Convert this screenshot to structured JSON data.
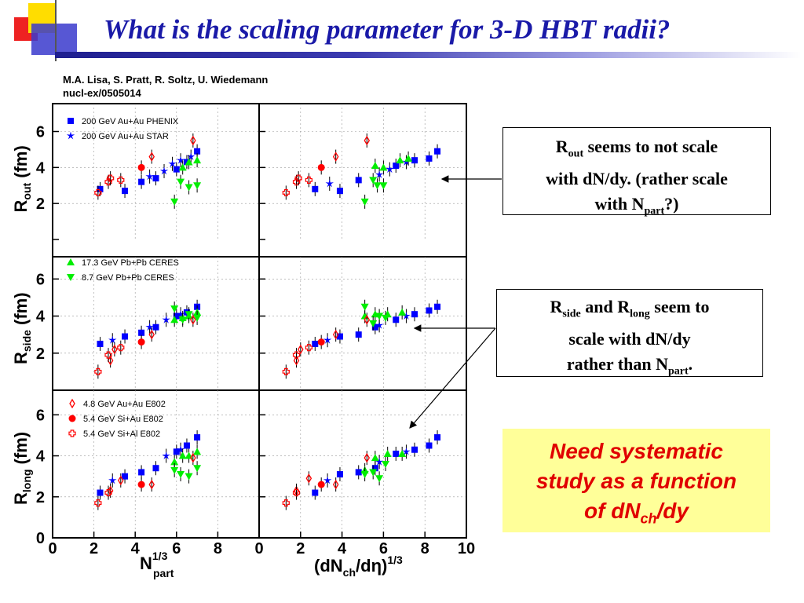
{
  "slide": {
    "title": "What is the scaling parameter for 3-D HBT radii?",
    "cite_line1": "M.A. Lisa, S. Pratt, R. Soltz, U. Wiedemann",
    "cite_line2": "nucl-ex/0505014",
    "colors": {
      "title": "#1a1aa8",
      "note_bg": "#ffff99",
      "note_text": "#e00000"
    }
  },
  "callouts": {
    "rout": {
      "part1": "R",
      "sub1": "out",
      "part2": " seems to not scale",
      "line2": "with dN/dy. (rather scale",
      "part3": "with N",
      "sub3": "part",
      "part4": "?)"
    },
    "rside": {
      "part1": "R",
      "sub1": "side",
      "part2": " and R",
      "sub2": "long",
      "part3": " seem to",
      "line2": "scale with dN/dy",
      "part4": "rather than N",
      "sub4": "part",
      "part5": "."
    },
    "note": {
      "line1": "Need systematic",
      "line2": "study as a function",
      "line3a": "of dN",
      "line3sub": "ch",
      "line3b": "/dy"
    }
  },
  "chart_data": {
    "type": "scatter",
    "y_ticks": [
      "0",
      "2",
      "4",
      "6"
    ],
    "y_labels": [
      {
        "main": "R",
        "sub": "out",
        "unit": " (fm)"
      },
      {
        "main": "R",
        "sub": "side",
        "unit": " (fm)"
      },
      {
        "main": "R",
        "sub": "long",
        "unit": " (fm)"
      }
    ],
    "ylim": [
      0,
      7.2
    ],
    "x_left": {
      "main": "N",
      "sup": "1/3",
      "sub": "part",
      "ticks": [
        "0",
        "2",
        "4",
        "6",
        "8"
      ],
      "xlim": [
        0,
        10
      ]
    },
    "x_right": {
      "label_a": "(dN",
      "label_sub": "ch",
      "label_b": "/d",
      "label_eta": "η",
      "label_c": ")",
      "sup": "1/3",
      "ticks": [
        "0",
        "2",
        "4",
        "6",
        "8",
        "10"
      ],
      "xlim": [
        0,
        10
      ]
    },
    "legends": {
      "top": [
        {
          "marker": "square",
          "color": "#0000ff",
          "label": "200 GeV Au+Au PHENIX"
        },
        {
          "marker": "star",
          "color": "#0000ff",
          "label": "200 GeV Au+Au STAR"
        }
      ],
      "middle": [
        {
          "marker": "tri-up",
          "color": "#00ee00",
          "label": "17.3 GeV Pb+Pb CERES"
        },
        {
          "marker": "tri-down",
          "color": "#00ee00",
          "label": "8.7 GeV Pb+Pb CERES"
        }
      ],
      "bottom": [
        {
          "marker": "diamond-open",
          "color": "#ff0000",
          "label": "4.8 GeV Au+Au E802"
        },
        {
          "marker": "circle",
          "color": "#ff0000",
          "label": "5.4 GeV Si+Au  E802"
        },
        {
          "marker": "cross-open",
          "color": "#ff0000",
          "label": "5.4 GeV Si+Al  E802"
        }
      ]
    },
    "panels": {
      "out_left": [
        {
          "x": 2.3,
          "y": 2.8,
          "m": "square"
        },
        {
          "x": 3.5,
          "y": 2.7,
          "m": "square"
        },
        {
          "x": 4.3,
          "y": 3.2,
          "m": "square"
        },
        {
          "x": 5.0,
          "y": 3.4,
          "m": "square"
        },
        {
          "x": 6.0,
          "y": 3.9,
          "m": "square"
        },
        {
          "x": 6.5,
          "y": 4.3,
          "m": "square"
        },
        {
          "x": 7.0,
          "y": 4.9,
          "m": "square"
        },
        {
          "x": 4.7,
          "y": 3.5,
          "m": "star"
        },
        {
          "x": 5.4,
          "y": 3.8,
          "m": "star"
        },
        {
          "x": 5.8,
          "y": 4.2,
          "m": "star"
        },
        {
          "x": 6.2,
          "y": 4.4,
          "m": "star"
        },
        {
          "x": 6.7,
          "y": 4.6,
          "m": "star"
        },
        {
          "x": 6.3,
          "y": 4.0,
          "m": "tri-up"
        },
        {
          "x": 6.6,
          "y": 4.3,
          "m": "tri-up"
        },
        {
          "x": 7.0,
          "y": 4.4,
          "m": "tri-up"
        },
        {
          "x": 5.9,
          "y": 2.1,
          "m": "tri-down"
        },
        {
          "x": 6.2,
          "y": 3.2,
          "m": "tri-down"
        },
        {
          "x": 6.6,
          "y": 2.9,
          "m": "tri-down"
        },
        {
          "x": 7.0,
          "y": 3.0,
          "m": "tri-down"
        },
        {
          "x": 4.8,
          "y": 4.6,
          "m": "diamond-open"
        },
        {
          "x": 6.8,
          "y": 5.5,
          "m": "diamond-open"
        },
        {
          "x": 4.3,
          "y": 4.0,
          "m": "circle"
        },
        {
          "x": 2.2,
          "y": 2.6,
          "m": "cross-open"
        },
        {
          "x": 2.7,
          "y": 3.2,
          "m": "cross-open"
        },
        {
          "x": 2.8,
          "y": 3.4,
          "m": "cross-open"
        },
        {
          "x": 3.3,
          "y": 3.3,
          "m": "cross-open"
        }
      ],
      "out_right": [
        {
          "x": 2.7,
          "y": 2.8,
          "m": "square"
        },
        {
          "x": 3.9,
          "y": 2.7,
          "m": "square"
        },
        {
          "x": 4.8,
          "y": 3.3,
          "m": "square"
        },
        {
          "x": 6.6,
          "y": 4.1,
          "m": "square"
        },
        {
          "x": 7.5,
          "y": 4.4,
          "m": "square"
        },
        {
          "x": 8.2,
          "y": 4.5,
          "m": "square"
        },
        {
          "x": 8.6,
          "y": 4.9,
          "m": "square"
        },
        {
          "x": 3.4,
          "y": 3.1,
          "m": "star"
        },
        {
          "x": 5.8,
          "y": 3.6,
          "m": "star"
        },
        {
          "x": 6.3,
          "y": 3.9,
          "m": "star"
        },
        {
          "x": 7.1,
          "y": 4.3,
          "m": "star"
        },
        {
          "x": 5.6,
          "y": 4.1,
          "m": "tri-up"
        },
        {
          "x": 6.0,
          "y": 4.0,
          "m": "tri-up"
        },
        {
          "x": 6.8,
          "y": 4.4,
          "m": "tri-up"
        },
        {
          "x": 7.2,
          "y": 4.5,
          "m": "tri-up"
        },
        {
          "x": 5.1,
          "y": 2.1,
          "m": "tri-down"
        },
        {
          "x": 5.5,
          "y": 3.3,
          "m": "tri-down"
        },
        {
          "x": 5.7,
          "y": 3.0,
          "m": "tri-down"
        },
        {
          "x": 6.0,
          "y": 3.0,
          "m": "tri-down"
        },
        {
          "x": 3.7,
          "y": 4.6,
          "m": "diamond-open"
        },
        {
          "x": 5.2,
          "y": 5.5,
          "m": "diamond-open"
        },
        {
          "x": 3.0,
          "y": 4.0,
          "m": "circle"
        },
        {
          "x": 1.3,
          "y": 2.6,
          "m": "cross-open"
        },
        {
          "x": 1.8,
          "y": 3.2,
          "m": "cross-open"
        },
        {
          "x": 1.9,
          "y": 3.4,
          "m": "cross-open"
        },
        {
          "x": 2.4,
          "y": 3.3,
          "m": "cross-open"
        }
      ],
      "side_left": [
        {
          "x": 2.3,
          "y": 2.5,
          "m": "square"
        },
        {
          "x": 3.5,
          "y": 2.9,
          "m": "square"
        },
        {
          "x": 4.3,
          "y": 3.1,
          "m": "square"
        },
        {
          "x": 5.0,
          "y": 3.4,
          "m": "square"
        },
        {
          "x": 6.0,
          "y": 4.0,
          "m": "square"
        },
        {
          "x": 6.5,
          "y": 4.2,
          "m": "square"
        },
        {
          "x": 7.0,
          "y": 4.5,
          "m": "square"
        },
        {
          "x": 2.9,
          "y": 2.7,
          "m": "star"
        },
        {
          "x": 4.7,
          "y": 3.4,
          "m": "star"
        },
        {
          "x": 5.5,
          "y": 3.8,
          "m": "star"
        },
        {
          "x": 6.2,
          "y": 4.1,
          "m": "star"
        },
        {
          "x": 5.9,
          "y": 3.8,
          "m": "tri-up"
        },
        {
          "x": 6.3,
          "y": 3.9,
          "m": "tri-up"
        },
        {
          "x": 6.6,
          "y": 4.0,
          "m": "tri-up"
        },
        {
          "x": 7.0,
          "y": 4.2,
          "m": "tri-up"
        },
        {
          "x": 5.9,
          "y": 4.4,
          "m": "tri-down"
        },
        {
          "x": 6.3,
          "y": 3.8,
          "m": "tri-down"
        },
        {
          "x": 6.6,
          "y": 4.1,
          "m": "tri-down"
        },
        {
          "x": 7.0,
          "y": 3.9,
          "m": "tri-down"
        },
        {
          "x": 2.8,
          "y": 1.6,
          "m": "diamond-open"
        },
        {
          "x": 3.0,
          "y": 2.2,
          "m": "diamond-open"
        },
        {
          "x": 4.8,
          "y": 3.0,
          "m": "diamond-open"
        },
        {
          "x": 6.8,
          "y": 3.8,
          "m": "diamond-open"
        },
        {
          "x": 4.3,
          "y": 2.6,
          "m": "circle"
        },
        {
          "x": 2.2,
          "y": 1.0,
          "m": "cross-open"
        },
        {
          "x": 2.7,
          "y": 1.9,
          "m": "cross-open"
        },
        {
          "x": 3.3,
          "y": 2.3,
          "m": "cross-open"
        }
      ],
      "side_right": [
        {
          "x": 2.7,
          "y": 2.5,
          "m": "square"
        },
        {
          "x": 3.9,
          "y": 2.9,
          "m": "square"
        },
        {
          "x": 4.8,
          "y": 3.0,
          "m": "square"
        },
        {
          "x": 5.6,
          "y": 3.4,
          "m": "square"
        },
        {
          "x": 6.6,
          "y": 3.8,
          "m": "square"
        },
        {
          "x": 7.5,
          "y": 4.1,
          "m": "square"
        },
        {
          "x": 8.2,
          "y": 4.3,
          "m": "square"
        },
        {
          "x": 8.6,
          "y": 4.5,
          "m": "square"
        },
        {
          "x": 3.3,
          "y": 2.7,
          "m": "star"
        },
        {
          "x": 5.8,
          "y": 3.5,
          "m": "star"
        },
        {
          "x": 7.1,
          "y": 4.0,
          "m": "star"
        },
        {
          "x": 5.1,
          "y": 4.0,
          "m": "tri-up"
        },
        {
          "x": 5.6,
          "y": 4.1,
          "m": "tri-up"
        },
        {
          "x": 6.2,
          "y": 4.1,
          "m": "tri-up"
        },
        {
          "x": 6.9,
          "y": 4.2,
          "m": "tri-up"
        },
        {
          "x": 5.1,
          "y": 4.5,
          "m": "tri-down"
        },
        {
          "x": 5.5,
          "y": 3.6,
          "m": "tri-down"
        },
        {
          "x": 5.8,
          "y": 4.0,
          "m": "tri-down"
        },
        {
          "x": 6.1,
          "y": 3.9,
          "m": "tri-down"
        },
        {
          "x": 1.8,
          "y": 1.6,
          "m": "diamond-open"
        },
        {
          "x": 2.0,
          "y": 2.2,
          "m": "diamond-open"
        },
        {
          "x": 3.7,
          "y": 3.0,
          "m": "diamond-open"
        },
        {
          "x": 5.2,
          "y": 3.8,
          "m": "diamond-open"
        },
        {
          "x": 3.0,
          "y": 2.6,
          "m": "circle"
        },
        {
          "x": 1.3,
          "y": 1.0,
          "m": "cross-open"
        },
        {
          "x": 1.8,
          "y": 1.9,
          "m": "cross-open"
        },
        {
          "x": 2.4,
          "y": 2.3,
          "m": "cross-open"
        }
      ],
      "long_left": [
        {
          "x": 2.3,
          "y": 2.2,
          "m": "square"
        },
        {
          "x": 3.5,
          "y": 3.0,
          "m": "square"
        },
        {
          "x": 4.3,
          "y": 3.2,
          "m": "square"
        },
        {
          "x": 5.0,
          "y": 3.4,
          "m": "square"
        },
        {
          "x": 6.0,
          "y": 4.2,
          "m": "square"
        },
        {
          "x": 6.5,
          "y": 4.5,
          "m": "square"
        },
        {
          "x": 7.0,
          "y": 4.9,
          "m": "square"
        },
        {
          "x": 2.9,
          "y": 2.8,
          "m": "star"
        },
        {
          "x": 5.5,
          "y": 4.0,
          "m": "star"
        },
        {
          "x": 6.2,
          "y": 4.3,
          "m": "star"
        },
        {
          "x": 5.9,
          "y": 3.7,
          "m": "tri-up"
        },
        {
          "x": 6.3,
          "y": 4.0,
          "m": "tri-up"
        },
        {
          "x": 6.6,
          "y": 4.0,
          "m": "tri-up"
        },
        {
          "x": 7.0,
          "y": 4.2,
          "m": "tri-up"
        },
        {
          "x": 5.9,
          "y": 3.3,
          "m": "tri-down"
        },
        {
          "x": 6.2,
          "y": 3.1,
          "m": "tri-down"
        },
        {
          "x": 6.6,
          "y": 3.0,
          "m": "tri-down"
        },
        {
          "x": 7.0,
          "y": 3.4,
          "m": "tri-down"
        },
        {
          "x": 2.8,
          "y": 2.3,
          "m": "diamond-open"
        },
        {
          "x": 3.3,
          "y": 2.8,
          "m": "diamond-open"
        },
        {
          "x": 4.8,
          "y": 2.6,
          "m": "diamond-open"
        },
        {
          "x": 6.8,
          "y": 3.9,
          "m": "diamond-open"
        },
        {
          "x": 4.3,
          "y": 2.6,
          "m": "circle"
        },
        {
          "x": 2.2,
          "y": 1.7,
          "m": "cross-open"
        },
        {
          "x": 2.7,
          "y": 2.2,
          "m": "cross-open"
        }
      ],
      "long_right": [
        {
          "x": 2.7,
          "y": 2.2,
          "m": "square"
        },
        {
          "x": 3.9,
          "y": 3.1,
          "m": "square"
        },
        {
          "x": 4.8,
          "y": 3.2,
          "m": "square"
        },
        {
          "x": 5.6,
          "y": 3.4,
          "m": "square"
        },
        {
          "x": 6.6,
          "y": 4.1,
          "m": "square"
        },
        {
          "x": 7.5,
          "y": 4.3,
          "m": "square"
        },
        {
          "x": 8.2,
          "y": 4.5,
          "m": "square"
        },
        {
          "x": 8.6,
          "y": 4.9,
          "m": "square"
        },
        {
          "x": 3.3,
          "y": 2.8,
          "m": "star"
        },
        {
          "x": 5.8,
          "y": 3.7,
          "m": "star"
        },
        {
          "x": 7.1,
          "y": 4.2,
          "m": "star"
        },
        {
          "x": 5.1,
          "y": 3.3,
          "m": "tri-up"
        },
        {
          "x": 5.6,
          "y": 3.9,
          "m": "tri-up"
        },
        {
          "x": 6.2,
          "y": 4.1,
          "m": "tri-up"
        },
        {
          "x": 6.9,
          "y": 4.1,
          "m": "tri-up"
        },
        {
          "x": 5.1,
          "y": 3.1,
          "m": "tri-down"
        },
        {
          "x": 5.5,
          "y": 3.2,
          "m": "tri-down"
        },
        {
          "x": 5.8,
          "y": 2.9,
          "m": "tri-down"
        },
        {
          "x": 6.1,
          "y": 3.6,
          "m": "tri-down"
        },
        {
          "x": 1.8,
          "y": 2.3,
          "m": "diamond-open"
        },
        {
          "x": 2.4,
          "y": 2.9,
          "m": "diamond-open"
        },
        {
          "x": 3.7,
          "y": 2.6,
          "m": "diamond-open"
        },
        {
          "x": 5.2,
          "y": 3.9,
          "m": "diamond-open"
        },
        {
          "x": 3.0,
          "y": 2.6,
          "m": "circle"
        },
        {
          "x": 1.3,
          "y": 1.7,
          "m": "cross-open"
        },
        {
          "x": 1.8,
          "y": 2.2,
          "m": "cross-open"
        }
      ]
    }
  }
}
